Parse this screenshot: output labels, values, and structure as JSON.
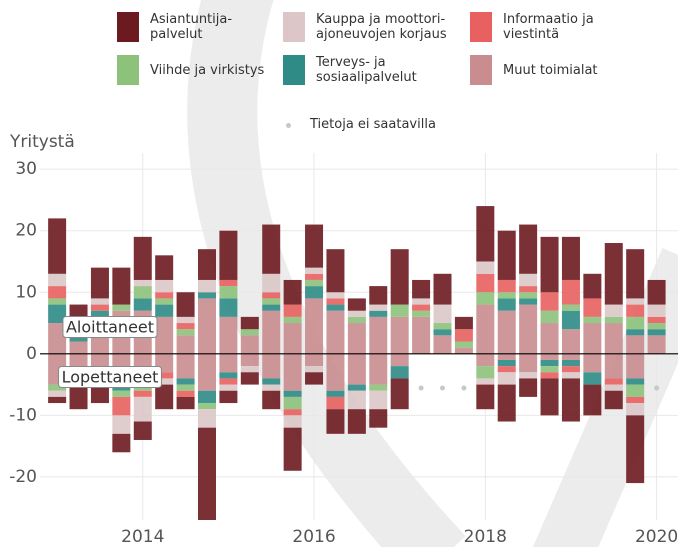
{
  "chart_data": {
    "type": "bar",
    "y_label": "Yritystä",
    "annotations": [
      "Aloittaneet",
      "Lopettaneet"
    ],
    "missing_label": "Tietoja ei saatavilla",
    "x": [
      2013,
      2013.25,
      2013.5,
      2013.75,
      2014,
      2014.25,
      2014.5,
      2014.75,
      2015,
      2015.25,
      2015.5,
      2015.75,
      2016,
      2016.25,
      2016.5,
      2016.75,
      2017,
      2017.25,
      2017.5,
      2017.75,
      2018,
      2018.25,
      2018.5,
      2018.75,
      2019,
      2019.25,
      2019.5,
      2019.75,
      2020
    ],
    "xlim": [
      2012.8,
      2020.25
    ],
    "xticks": [
      2014,
      2016,
      2018,
      2020
    ],
    "ylim": [
      -27,
      31
    ],
    "yticks": [
      -20,
      -10,
      0,
      10,
      20,
      30
    ],
    "grid": true,
    "series": [
      {
        "name": "Asiantuntija-\npalvelut",
        "color": "#6b1a1f",
        "values": [
          9,
          3,
          5,
          6,
          7,
          4,
          4,
          5,
          8,
          2,
          8,
          4,
          7,
          7,
          2,
          3,
          9,
          3,
          5,
          2,
          9,
          8,
          8,
          9,
          7,
          4,
          10,
          8,
          4
        ],
        "ended_values": [
          -1,
          -5,
          -3,
          -3,
          -3,
          -4,
          -2,
          -15,
          -2,
          -2,
          -3,
          -7,
          -2,
          -4,
          -4,
          -3,
          -5,
          null,
          null,
          null,
          -4,
          -6,
          -3,
          -6,
          -7,
          -5,
          -3,
          -11,
          null
        ]
      },
      {
        "name": "Kauppa ja moottori-\najoneuvojen korjaus",
        "color": "#dcc6c8",
        "values": [
          2,
          1,
          1,
          0,
          1,
          2,
          1,
          2,
          0,
          0,
          3,
          0,
          1,
          1,
          1,
          1,
          0,
          1,
          3,
          0,
          2,
          0,
          2,
          0,
          0,
          0,
          2,
          1,
          2
        ],
        "ended_values": [
          -1,
          -1,
          -1,
          -3,
          -4,
          -1,
          0,
          -3,
          -1,
          -1,
          -1,
          -2,
          -1,
          0,
          -3,
          -3,
          0,
          null,
          null,
          null,
          -1,
          -2,
          -1,
          0,
          -1,
          0,
          -1,
          -2,
          null
        ]
      },
      {
        "name": "Informaatio ja\nviestintä",
        "color": "#e8605f",
        "values": [
          2,
          1,
          1,
          0,
          0,
          1,
          1,
          0,
          1,
          0,
          1,
          2,
          1,
          1,
          0,
          0,
          0,
          1,
          0,
          2,
          3,
          2,
          1,
          3,
          4,
          3,
          0,
          2,
          1
        ],
        "ended_values": [
          0,
          -1,
          0,
          -3,
          -1,
          -1,
          -1,
          0,
          -1,
          0,
          0,
          -1,
          0,
          -2,
          0,
          0,
          0,
          null,
          null,
          null,
          0,
          -1,
          0,
          -1,
          -1,
          0,
          -1,
          -1,
          null
        ]
      },
      {
        "name": "Viihde ja virkistys",
        "color": "#8dc27a",
        "values": [
          1,
          0,
          0,
          1,
          2,
          1,
          1,
          0,
          2,
          1,
          1,
          1,
          1,
          0,
          1,
          0,
          2,
          1,
          1,
          1,
          2,
          1,
          1,
          2,
          1,
          1,
          1,
          2,
          1
        ],
        "ended_values": [
          -1,
          0,
          -1,
          -1,
          -2,
          0,
          -1,
          -1,
          0,
          0,
          0,
          -2,
          0,
          0,
          0,
          -1,
          0,
          null,
          null,
          null,
          -2,
          0,
          0,
          -1,
          0,
          0,
          0,
          -2,
          null
        ]
      },
      {
        "name": "Terveys- ja\nsosiaalipalvelut",
        "color": "#2e8b86",
        "values": [
          3,
          1,
          1,
          0,
          2,
          2,
          0,
          1,
          3,
          0,
          1,
          0,
          2,
          1,
          0,
          1,
          0,
          0,
          1,
          0,
          0,
          2,
          1,
          0,
          3,
          0,
          0,
          1,
          1
        ],
        "ended_values": [
          0,
          0,
          0,
          -1,
          0,
          0,
          -1,
          -2,
          -1,
          0,
          -1,
          -1,
          0,
          -1,
          -1,
          0,
          -2,
          null,
          null,
          null,
          0,
          -1,
          0,
          -1,
          -1,
          -2,
          0,
          -1,
          null
        ]
      },
      {
        "name": "Muut toimialat",
        "color": "#c98d8f",
        "values": [
          5,
          2,
          6,
          7,
          7,
          6,
          3,
          9,
          6,
          3,
          7,
          5,
          9,
          7,
          5,
          6,
          6,
          6,
          3,
          1,
          8,
          7,
          8,
          5,
          4,
          5,
          5,
          3,
          3
        ],
        "ended_values": [
          -5,
          -2,
          -3,
          -5,
          -4,
          -3,
          -4,
          -6,
          -3,
          -2,
          -4,
          -6,
          -2,
          -6,
          -5,
          -5,
          -2,
          null,
          null,
          null,
          -2,
          -1,
          -3,
          -1,
          -1,
          -3,
          -4,
          -4,
          null
        ]
      }
    ]
  }
}
